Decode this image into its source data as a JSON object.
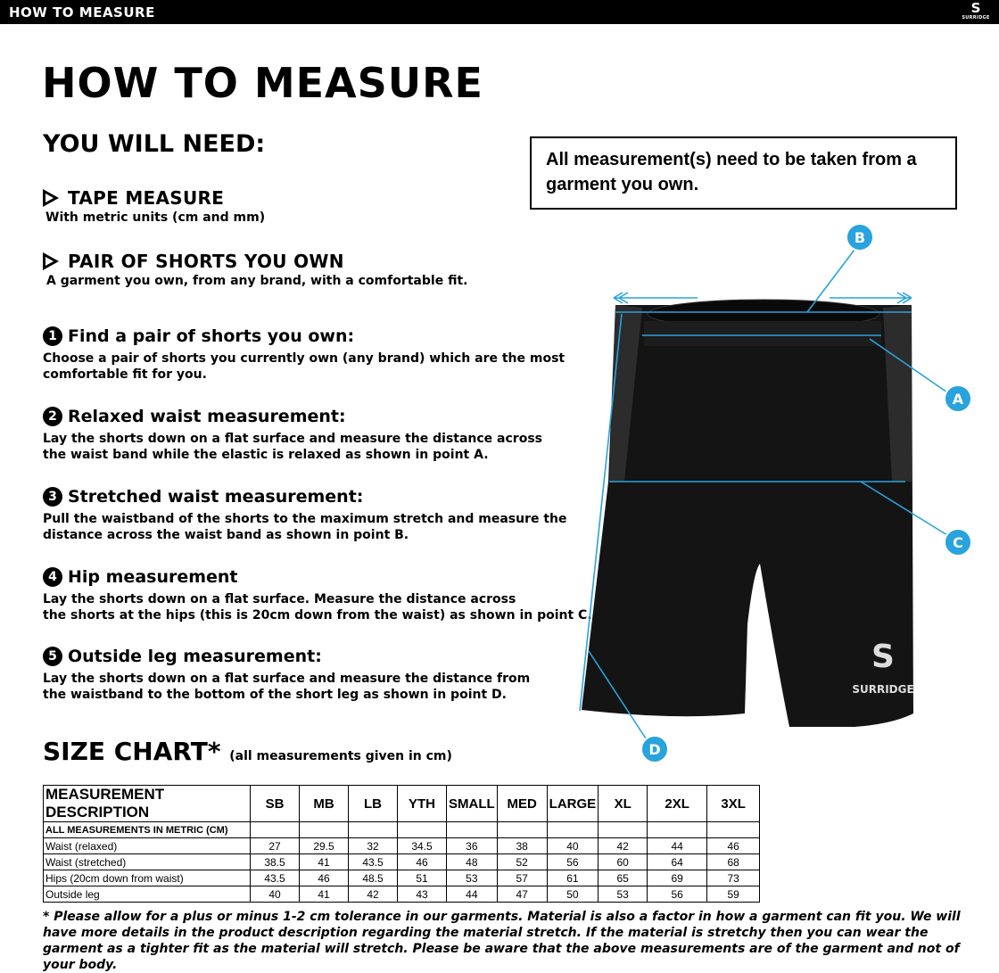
{
  "topbar": {
    "title": "HOW TO MEASURE",
    "logo_text": "SURRIDGE"
  },
  "title": "HOW TO MEASURE",
  "you_will_need": {
    "heading": "YOU WILL NEED:",
    "items": [
      {
        "label": "TAPE MEASURE",
        "desc": "With metric units (cm and mm)"
      },
      {
        "label": "PAIR OF SHORTS YOU OWN",
        "desc": "A garment you own, from any brand, with a comfortable fit."
      }
    ]
  },
  "notice": "All measurement(s) need to be taken from a garment you own.",
  "steps": [
    {
      "num": "1",
      "title": "Find a pair of shorts you own:",
      "text": "Choose a pair of shorts you currently own (any brand) which are the most\ncomfortable fit for you."
    },
    {
      "num": "2",
      "title": "Relaxed waist measurement:",
      "text": "Lay the shorts down on a flat surface and measure the distance across\nthe waist band while the elastic is relaxed as shown in point A."
    },
    {
      "num": "3",
      "title": "Stretched waist measurement:",
      "text": "Pull the waistband of the shorts to the maximum stretch and measure the\ndistance across the waist band as shown in point B."
    },
    {
      "num": "4",
      "title": "Hip measurement",
      "text": "Lay the shorts down on a flat surface. Measure the distance across\nthe shorts at the hips (this is 20cm down from the waist)  as shown in point C."
    },
    {
      "num": "5",
      "title": "Outside leg measurement:",
      "text": "Lay the shorts down on a flat surface and measure the distance from\nthe waistband to the bottom of the short leg as shown in point D."
    }
  ],
  "diagram": {
    "points": [
      "A",
      "B",
      "C",
      "D"
    ],
    "brand": "SURRIDGE",
    "accent": "#29a3dd"
  },
  "size_chart": {
    "heading": "SIZE CHART*",
    "note": "(all measurements given in cm)",
    "columns": [
      "MEASUREMENT DESCRIPTION",
      "SB",
      "MB",
      "LB",
      "YTH",
      "SMALL",
      "MED",
      "LARGE",
      "XL",
      "2XL",
      "3XL"
    ],
    "subheader": "ALL MEASUREMENTS IN METRIC (CM)",
    "rows": [
      [
        "Waist (relaxed)",
        "27",
        "29.5",
        "32",
        "34.5",
        "36",
        "38",
        "40",
        "42",
        "44",
        "46"
      ],
      [
        "Waist (stretched)",
        "38.5",
        "41",
        "43.5",
        "46",
        "48",
        "52",
        "56",
        "60",
        "64",
        "68"
      ],
      [
        "Hips (20cm down from waist)",
        "43.5",
        "46",
        "48.5",
        "51",
        "53",
        "57",
        "61",
        "65",
        "69",
        "73"
      ],
      [
        "Outside leg",
        "40",
        "41",
        "42",
        "43",
        "44",
        "47",
        "50",
        "53",
        "56",
        "59"
      ]
    ]
  },
  "footnote": "* Please allow for a plus or minus 1-2 cm tolerance in our garments. Material is also a factor in how a garment can fit you. We will have more details in the product description regarding the material stretch.  If the material is stretchy then you can wear the garment as a tighter fit as the material will stretch.  Please be aware that the above measurements are of the garment and not of your body."
}
